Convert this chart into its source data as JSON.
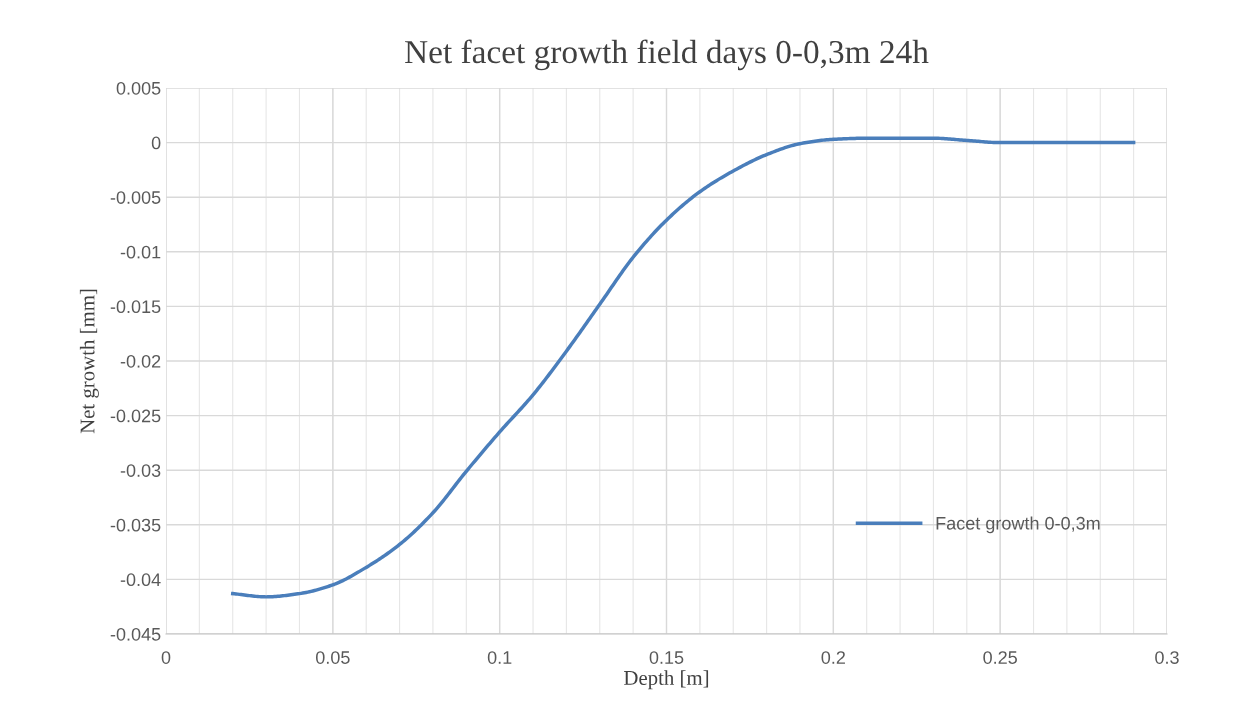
{
  "chart_data": {
    "type": "line",
    "title": "Net facet growth field days 0-0,3m 24h",
    "xlabel": "Depth [m]",
    "ylabel": "Net growth [mm]",
    "x": [
      0.02,
      0.03,
      0.04,
      0.05,
      0.06,
      0.07,
      0.08,
      0.09,
      0.1,
      0.11,
      0.12,
      0.13,
      0.14,
      0.15,
      0.16,
      0.17,
      0.18,
      0.19,
      0.2,
      0.21,
      0.22,
      0.23,
      0.24,
      0.25,
      0.26,
      0.27,
      0.28,
      0.29
    ],
    "series": [
      {
        "name": "Facet growth 0-0,3m",
        "color": "#4a7ebb",
        "values": [
          -0.0413,
          -0.0416,
          -0.0413,
          -0.0405,
          -0.0389,
          -0.0368,
          -0.0339,
          -0.0301,
          -0.0265,
          -0.0231,
          -0.0191,
          -0.0148,
          -0.0105,
          -0.0071,
          -0.0045,
          -0.0026,
          -0.0011,
          -0.0001,
          0.0003,
          0.0004,
          0.0004,
          0.0004,
          0.0002,
          0,
          0,
          0,
          0,
          0
        ]
      }
    ],
    "xlim": [
      0,
      0.3
    ],
    "xticks": [
      0,
      0.05,
      0.1,
      0.15,
      0.2,
      0.25,
      0.3
    ],
    "ylim": [
      -0.045,
      0.005
    ],
    "yticks": [
      -0.045,
      -0.04,
      -0.035,
      -0.03,
      -0.025,
      -0.02,
      -0.015,
      -0.01,
      -0.005,
      0,
      0.005
    ],
    "grid": true,
    "legend": "center right",
    "marker": "none",
    "line_style": "solid"
  }
}
